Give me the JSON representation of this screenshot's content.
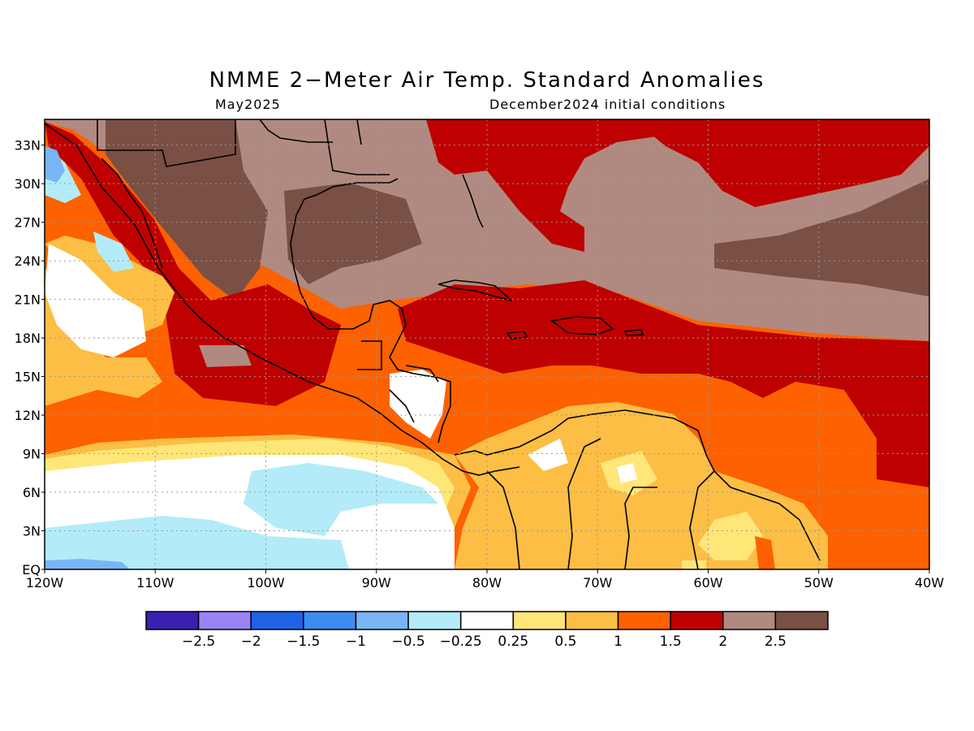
{
  "title": "NMME 2−Meter Air Temp. Standard Anomalies",
  "subtitle_left": "May2025",
  "subtitle_right": "December2024 initial conditions",
  "map": {
    "lon_range": [
      -120,
      -40
    ],
    "lat_range": [
      0,
      35
    ],
    "lon_labels": [
      "120W",
      "110W",
      "100W",
      "90W",
      "80W",
      "70W",
      "60W",
      "50W",
      "40W"
    ],
    "lat_labels": [
      "EQ",
      "3N",
      "6N",
      "9N",
      "12N",
      "15N",
      "18N",
      "21N",
      "24N",
      "27N",
      "30N",
      "33N"
    ],
    "grid": "dotted"
  },
  "colorbar": {
    "colors": [
      "#3a1fb0",
      "#9a84f5",
      "#1f62e6",
      "#3e8bf0",
      "#78b6f5",
      "#b3ecf8",
      "#ffffff",
      "#ffe678",
      "#fcbe44",
      "#fd6100",
      "#be0000",
      "#b08a80",
      "#7a4f44"
    ],
    "labels": [
      "−2.5",
      "−2",
      "−1.5",
      "−1",
      "−0.5",
      "−0.25",
      "0.25",
      "0.5",
      "1",
      "1.5",
      "2",
      "2.5"
    ]
  },
  "fills": {
    "ocean_cool": "#b3ecf8",
    "ocean_blue": "#78b6f5",
    "neutral": "#ffffff",
    "warm1": "#ffe678",
    "warm2": "#fcbe44",
    "warm3": "#fd6100",
    "warm4": "#be0000",
    "warm5": "#b08a80",
    "warm6": "#7a4f44"
  }
}
